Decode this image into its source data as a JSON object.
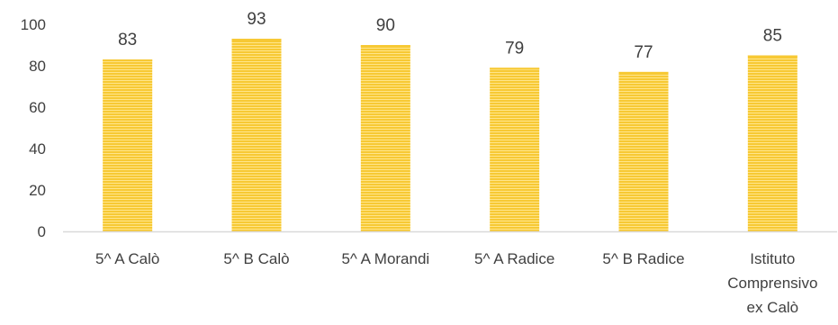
{
  "chart_data": {
    "type": "bar",
    "categories": [
      [
        "5^ A Calò"
      ],
      [
        "5^ B Calò"
      ],
      [
        "5^ A Morandi"
      ],
      [
        "5^ A Radice"
      ],
      [
        "5^ B Radice"
      ],
      [
        "Istituto",
        "Comprensivo",
        "ex Calò"
      ]
    ],
    "values": [
      83,
      93,
      90,
      79,
      77,
      85
    ],
    "data_labels": [
      "83",
      "93",
      "90",
      "79",
      "77",
      "85"
    ],
    "y_ticks": [
      "0",
      "20",
      "40",
      "60",
      "80",
      "100"
    ],
    "ylim": [
      0,
      100
    ],
    "title": "",
    "xlabel": "",
    "ylabel": "",
    "grid": false,
    "legend": "none",
    "colors": {
      "bar_fill": "#F7C934",
      "bar_stripe": "#FFE58A",
      "axis": "#D9D9D9",
      "text": "#404040"
    }
  }
}
